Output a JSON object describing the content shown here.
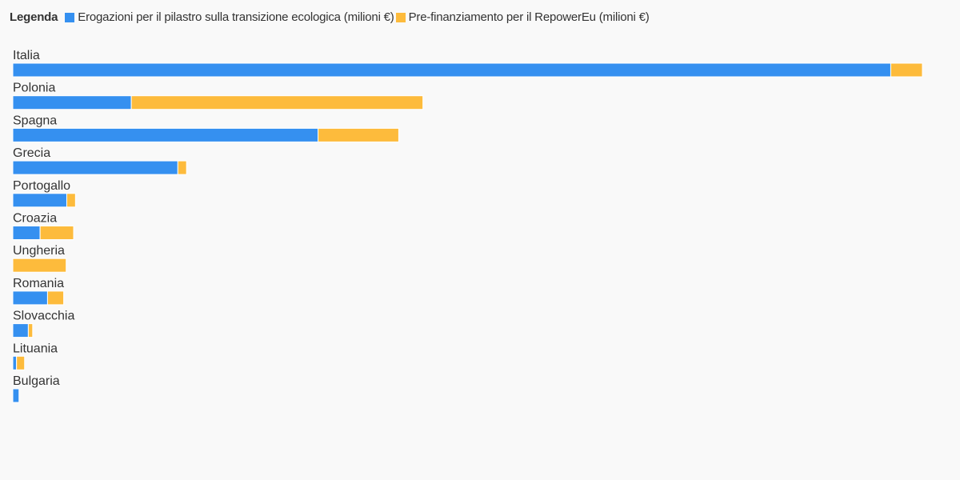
{
  "legend": {
    "title": "Legenda",
    "items": [
      {
        "label": "Erogazioni per il pilastro sulla transizione ecologica (milioni €)",
        "color": "#3590f0"
      },
      {
        "label": "Pre-finanziamento per il RepowerEu (milioni €)",
        "color": "#fdbb3c"
      }
    ]
  },
  "chart_data": {
    "type": "bar",
    "orientation": "horizontal",
    "stacked": true,
    "title": "",
    "xlabel": "",
    "ylabel": "",
    "grid": false,
    "legend_position": "top-left",
    "categories": [
      "Italia",
      "Polonia",
      "Spagna",
      "Grecia",
      "Portogallo",
      "Croazia",
      "Ungheria",
      "Romania",
      "Slovacchia",
      "Lituania",
      "Bulgaria"
    ],
    "series": [
      {
        "name": "Erogazioni per il pilastro sulla transizione ecologica (milioni €)",
        "color": "#3590f0",
        "values": [
          14150,
          1910,
          4920,
          2660,
          870,
          440,
          0,
          560,
          250,
          60,
          100
        ]
      },
      {
        "name": "Pre-finanziamento per il RepowerEu (milioni €)",
        "color": "#fdbb3c",
        "values": [
          510,
          4700,
          1300,
          140,
          140,
          540,
          860,
          260,
          70,
          130,
          0
        ]
      }
    ],
    "xlim": [
      0,
      14660
    ]
  }
}
